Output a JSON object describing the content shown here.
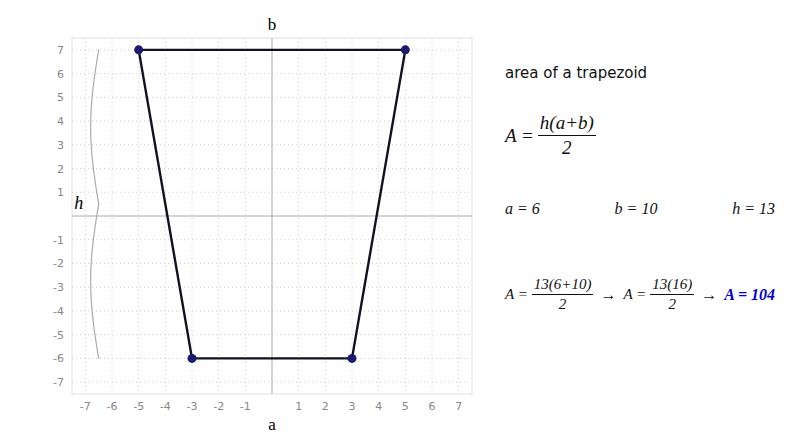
{
  "chart_data": {
    "type": "line",
    "xlim": [
      -7.5,
      7.5
    ],
    "ylim": [
      -7.5,
      7.5
    ],
    "xticks": [
      -7,
      -6,
      -5,
      -4,
      -3,
      -2,
      -1,
      1,
      2,
      3,
      4,
      5,
      6,
      7
    ],
    "yticks": [
      -7,
      -6,
      -5,
      -4,
      -3,
      -2,
      -1,
      1,
      2,
      3,
      4,
      5,
      6,
      7
    ],
    "grid": true,
    "series": [
      {
        "type": "line",
        "color": "#111122",
        "x": [
          -5,
          5,
          3,
          -3,
          -5
        ],
        "values": [
          7,
          7,
          -6,
          -6,
          7
        ]
      },
      {
        "type": "scatter",
        "color": "#1a1a6e",
        "marker": "circle",
        "x": [
          -5,
          5,
          3,
          -3
        ],
        "values": [
          7,
          7,
          -6,
          -6
        ]
      }
    ],
    "annotations": [
      {
        "text": "b"
      },
      {
        "text": "a"
      },
      {
        "text": "h"
      },
      {
        "text": "area of a trapezoid"
      },
      {
        "text": "A =",
        "fraction": [
          "h(a+b)",
          "2"
        ]
      },
      {
        "text": "a = 6"
      },
      {
        "text": "b = 10"
      },
      {
        "text": "h = 13"
      },
      {
        "text": "A =",
        "fraction": [
          "13(6+10)",
          "2"
        ]
      },
      {
        "text": "→"
      },
      {
        "text": "A =",
        "fraction": [
          "13(16)",
          "2"
        ]
      },
      {
        "text": "→"
      },
      {
        "text": "A = 104",
        "color": "#0000cc"
      }
    ]
  }
}
